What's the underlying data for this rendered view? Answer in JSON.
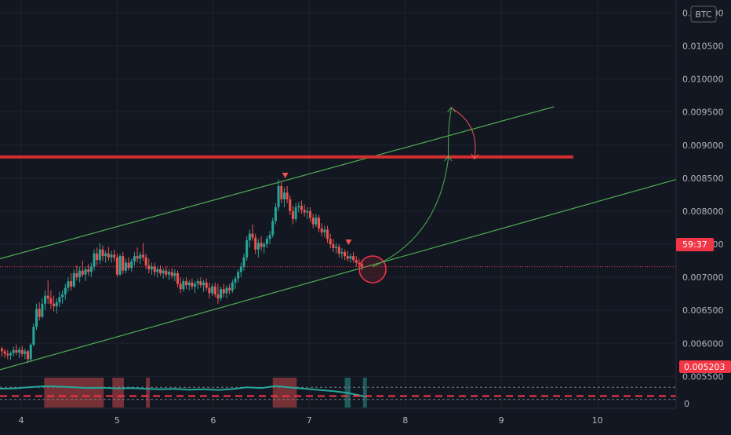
{
  "symbol": {
    "currency": "BTC"
  },
  "price_axis": {
    "ticks": [
      "0.011000",
      "0.010500",
      "0.010000",
      "0.009500",
      "0.009000",
      "0.008500",
      "0.008000",
      "0.007500",
      "0.007000",
      "0.006500",
      "0.006000",
      "0.005500"
    ],
    "countdown_label": "59:37",
    "stop_label": "0.005203"
  },
  "indicator_axis": {
    "zero_label": "0"
  },
  "time_axis": {
    "ticks": [
      "4",
      "5",
      "6",
      "7",
      "8",
      "9",
      "10"
    ]
  },
  "colors": {
    "background": "#131722",
    "up": "#26a69a",
    "down": "#ef5350",
    "channel": "#4caf50",
    "resistance": "#d32f2f",
    "label_red": "#f23645"
  },
  "chart_data": {
    "type": "candlestick",
    "y_range": [
      0.0051,
      0.0111
    ],
    "x_range": [
      3.78,
      10.82
    ],
    "channel_upper": [
      [
        3.78,
        0.00728
      ],
      [
        9.55,
        0.00958
      ]
    ],
    "channel_lower": [
      [
        3.78,
        0.0056
      ],
      [
        10.82,
        0.00848
      ]
    ],
    "resistance_level": 0.00882,
    "stop_level": 0.005203,
    "current_price": 0.00716,
    "candles": [
      [
        3.8,
        0.00592,
        0.00595,
        0.0058,
        0.00588
      ],
      [
        3.83,
        0.00588,
        0.00592,
        0.00578,
        0.00584
      ],
      [
        3.86,
        0.00584,
        0.0059,
        0.00576,
        0.00582
      ],
      [
        3.89,
        0.00582,
        0.00588,
        0.00575,
        0.00585
      ],
      [
        3.92,
        0.00585,
        0.00595,
        0.0058,
        0.0059
      ],
      [
        3.95,
        0.0059,
        0.00598,
        0.00582,
        0.00586
      ],
      [
        3.98,
        0.00586,
        0.00594,
        0.00578,
        0.0059
      ],
      [
        4.01,
        0.0059,
        0.00596,
        0.0058,
        0.00584
      ],
      [
        4.04,
        0.00584,
        0.00592,
        0.00576,
        0.00588
      ],
      [
        4.07,
        0.00588,
        0.0059,
        0.0057,
        0.00576
      ],
      [
        4.1,
        0.00576,
        0.006,
        0.00572,
        0.00598
      ],
      [
        4.13,
        0.00598,
        0.0063,
        0.00595,
        0.00625
      ],
      [
        4.16,
        0.00625,
        0.0066,
        0.0062,
        0.00652
      ],
      [
        4.19,
        0.00652,
        0.00662,
        0.00635,
        0.0064
      ],
      [
        4.22,
        0.0064,
        0.00668,
        0.00638,
        0.0066
      ],
      [
        4.25,
        0.0066,
        0.0068,
        0.0065,
        0.00672
      ],
      [
        4.28,
        0.00672,
        0.00695,
        0.0066,
        0.00668
      ],
      [
        4.31,
        0.00668,
        0.0068,
        0.00652,
        0.0066
      ],
      [
        4.34,
        0.0066,
        0.00672,
        0.00648,
        0.00656
      ],
      [
        4.37,
        0.00656,
        0.00668,
        0.00645,
        0.00662
      ],
      [
        4.4,
        0.00662,
        0.00678,
        0.00655,
        0.0067
      ],
      [
        4.43,
        0.0067,
        0.0068,
        0.0066,
        0.00674
      ],
      [
        4.46,
        0.00674,
        0.0069,
        0.00666,
        0.00684
      ],
      [
        4.49,
        0.00684,
        0.007,
        0.00678,
        0.00694
      ],
      [
        4.52,
        0.00694,
        0.00706,
        0.0068,
        0.00686
      ],
      [
        4.55,
        0.00686,
        0.00712,
        0.00684,
        0.00706
      ],
      [
        4.58,
        0.00706,
        0.00718,
        0.00695,
        0.007
      ],
      [
        4.61,
        0.007,
        0.00716,
        0.00692,
        0.0071
      ],
      [
        4.64,
        0.0071,
        0.00725,
        0.007,
        0.00704
      ],
      [
        4.67,
        0.00704,
        0.00716,
        0.00694,
        0.00712
      ],
      [
        4.7,
        0.00712,
        0.0072,
        0.00702,
        0.00708
      ],
      [
        4.73,
        0.00708,
        0.00722,
        0.007,
        0.00716
      ],
      [
        4.76,
        0.00716,
        0.00742,
        0.0071,
        0.00736
      ],
      [
        4.79,
        0.00736,
        0.00745,
        0.00718,
        0.00726
      ],
      [
        4.82,
        0.00726,
        0.00752,
        0.0072,
        0.00742
      ],
      [
        4.85,
        0.00742,
        0.00748,
        0.00725,
        0.00732
      ],
      [
        4.88,
        0.00732,
        0.0074,
        0.00722,
        0.00736
      ],
      [
        4.91,
        0.00736,
        0.00746,
        0.00725,
        0.0073
      ],
      [
        4.94,
        0.0073,
        0.0074,
        0.00722,
        0.00734
      ],
      [
        4.97,
        0.00734,
        0.00742,
        0.00724,
        0.0073
      ],
      [
        5.0,
        0.0073,
        0.00736,
        0.007,
        0.00704
      ],
      [
        5.03,
        0.00704,
        0.00735,
        0.00702,
        0.00732
      ],
      [
        5.06,
        0.00732,
        0.00738,
        0.00705,
        0.0071
      ],
      [
        5.09,
        0.0071,
        0.00728,
        0.00706,
        0.00722
      ],
      [
        5.12,
        0.00722,
        0.0073,
        0.0071,
        0.00714
      ],
      [
        5.15,
        0.00714,
        0.00728,
        0.00708,
        0.00724
      ],
      [
        5.18,
        0.00724,
        0.00738,
        0.00718,
        0.00732
      ],
      [
        5.21,
        0.00732,
        0.00745,
        0.00722,
        0.00728
      ],
      [
        5.24,
        0.00728,
        0.00738,
        0.0072,
        0.00734
      ],
      [
        5.27,
        0.00734,
        0.00752,
        0.00725,
        0.0073
      ],
      [
        5.3,
        0.0073,
        0.00736,
        0.00712,
        0.00718
      ],
      [
        5.33,
        0.00718,
        0.00728,
        0.00706,
        0.00712
      ],
      [
        5.36,
        0.00712,
        0.00722,
        0.00704,
        0.00716
      ],
      [
        5.39,
        0.00716,
        0.00722,
        0.00702,
        0.00708
      ],
      [
        5.42,
        0.00708,
        0.00716,
        0.007,
        0.00712
      ],
      [
        5.45,
        0.00712,
        0.00718,
        0.00702,
        0.00706
      ],
      [
        5.48,
        0.00706,
        0.00714,
        0.00698,
        0.0071
      ],
      [
        5.51,
        0.0071,
        0.00716,
        0.007,
        0.00704
      ],
      [
        5.54,
        0.00704,
        0.00712,
        0.00696,
        0.00708
      ],
      [
        5.57,
        0.00708,
        0.00714,
        0.00698,
        0.00702
      ],
      [
        5.6,
        0.00702,
        0.00712,
        0.00694,
        0.00706
      ],
      [
        5.63,
        0.00706,
        0.0071,
        0.00685,
        0.0069
      ],
      [
        5.66,
        0.0069,
        0.007,
        0.00676,
        0.00682
      ],
      [
        5.69,
        0.00682,
        0.00698,
        0.00678,
        0.00694
      ],
      [
        5.72,
        0.00694,
        0.007,
        0.00682,
        0.00688
      ],
      [
        5.75,
        0.00688,
        0.00696,
        0.0068,
        0.00692
      ],
      [
        5.78,
        0.00692,
        0.00698,
        0.00682,
        0.00686
      ],
      [
        5.81,
        0.00686,
        0.00694,
        0.00676,
        0.0069
      ],
      [
        5.84,
        0.0069,
        0.00698,
        0.00682,
        0.00694
      ],
      [
        5.87,
        0.00694,
        0.007,
        0.00684,
        0.00688
      ],
      [
        5.9,
        0.00688,
        0.00696,
        0.00678,
        0.00692
      ],
      [
        5.93,
        0.00692,
        0.00698,
        0.0068,
        0.00684
      ],
      [
        5.96,
        0.00684,
        0.00692,
        0.00668,
        0.00676
      ],
      [
        5.99,
        0.00676,
        0.0069,
        0.00672,
        0.00686
      ],
      [
        6.02,
        0.00686,
        0.00692,
        0.0067,
        0.00674
      ],
      [
        6.05,
        0.00674,
        0.0069,
        0.0066,
        0.00668
      ],
      [
        6.08,
        0.00668,
        0.00686,
        0.00664,
        0.00682
      ],
      [
        6.11,
        0.00682,
        0.0069,
        0.0067,
        0.00676
      ],
      [
        6.14,
        0.00676,
        0.00688,
        0.00668,
        0.00684
      ],
      [
        6.17,
        0.00684,
        0.0069,
        0.00674,
        0.0068
      ],
      [
        6.2,
        0.0068,
        0.00696,
        0.00676,
        0.00692
      ],
      [
        6.23,
        0.00692,
        0.00702,
        0.00682,
        0.00698
      ],
      [
        6.26,
        0.00698,
        0.00712,
        0.00692,
        0.00708
      ],
      [
        6.29,
        0.00708,
        0.00722,
        0.007,
        0.00716
      ],
      [
        6.32,
        0.00716,
        0.00736,
        0.0071,
        0.0073
      ],
      [
        6.35,
        0.0073,
        0.00762,
        0.00725,
        0.00756
      ],
      [
        6.38,
        0.00756,
        0.00772,
        0.00745,
        0.00766
      ],
      [
        6.41,
        0.00766,
        0.0078,
        0.00755,
        0.0076
      ],
      [
        6.44,
        0.0076,
        0.00766,
        0.00735,
        0.00742
      ],
      [
        6.47,
        0.00742,
        0.00758,
        0.0073,
        0.00752
      ],
      [
        6.5,
        0.00752,
        0.00762,
        0.0074,
        0.00746
      ],
      [
        6.53,
        0.00746,
        0.00754,
        0.00736,
        0.0075
      ],
      [
        6.56,
        0.0075,
        0.00762,
        0.00744,
        0.00758
      ],
      [
        6.59,
        0.00758,
        0.0077,
        0.0075,
        0.00764
      ],
      [
        6.62,
        0.00764,
        0.0079,
        0.0076,
        0.00785
      ],
      [
        6.65,
        0.00785,
        0.00812,
        0.0078,
        0.00806
      ],
      [
        6.68,
        0.00806,
        0.00848,
        0.008,
        0.00838
      ],
      [
        6.71,
        0.00838,
        0.00845,
        0.00812,
        0.00818
      ],
      [
        6.74,
        0.00818,
        0.00836,
        0.00806,
        0.00828
      ],
      [
        6.77,
        0.00828,
        0.00838,
        0.00812,
        0.00818
      ],
      [
        6.8,
        0.00818,
        0.00824,
        0.00794,
        0.008
      ],
      [
        6.83,
        0.008,
        0.00808,
        0.0078,
        0.00788
      ],
      [
        6.86,
        0.00788,
        0.00812,
        0.00784,
        0.00806
      ],
      [
        6.89,
        0.00806,
        0.00814,
        0.00798,
        0.00808
      ],
      [
        6.92,
        0.00808,
        0.00816,
        0.00796,
        0.00802
      ],
      [
        6.95,
        0.00802,
        0.0081,
        0.00792,
        0.00798
      ],
      [
        6.98,
        0.00798,
        0.00806,
        0.00788,
        0.008
      ],
      [
        7.01,
        0.008,
        0.00806,
        0.00784,
        0.0079
      ],
      [
        7.04,
        0.0079,
        0.00796,
        0.00774,
        0.0078
      ],
      [
        7.07,
        0.0078,
        0.00796,
        0.00776,
        0.0079
      ],
      [
        7.1,
        0.0079,
        0.00794,
        0.00768,
        0.00774
      ],
      [
        7.13,
        0.00774,
        0.00782,
        0.00762,
        0.00768
      ],
      [
        7.16,
        0.00768,
        0.00778,
        0.0076,
        0.00772
      ],
      [
        7.19,
        0.00772,
        0.00778,
        0.00752,
        0.00758
      ],
      [
        7.22,
        0.00758,
        0.00766,
        0.00744,
        0.0075
      ],
      [
        7.25,
        0.0075,
        0.00758,
        0.00738,
        0.00744
      ],
      [
        7.28,
        0.00744,
        0.00752,
        0.00736,
        0.00746
      ],
      [
        7.31,
        0.00746,
        0.0075,
        0.0073,
        0.00736
      ],
      [
        7.34,
        0.00736,
        0.00744,
        0.00728,
        0.00738
      ],
      [
        7.37,
        0.00738,
        0.00742,
        0.00726,
        0.00732
      ],
      [
        7.4,
        0.00732,
        0.0074,
        0.00724,
        0.00728
      ],
      [
        7.43,
        0.00728,
        0.00736,
        0.00722,
        0.00732
      ],
      [
        7.46,
        0.00732,
        0.00738,
        0.00722,
        0.00726
      ],
      [
        7.49,
        0.00726,
        0.00732,
        0.00716,
        0.00722
      ],
      [
        7.52,
        0.00722,
        0.00728,
        0.00712,
        0.0072
      ],
      [
        7.55,
        0.0072,
        0.00726,
        0.0071,
        0.00716
      ]
    ],
    "down_markers": [
      [
        6.75,
        0.00851
      ],
      [
        7.41,
        0.0075
      ]
    ],
    "oscillator_red_zones": [
      [
        4.24,
        4.86
      ],
      [
        4.95,
        5.07
      ],
      [
        5.3,
        5.34
      ],
      [
        6.62,
        6.87
      ]
    ],
    "oscillator_green_zones": [
      [
        7.37,
        7.43
      ],
      [
        7.56,
        7.6
      ]
    ],
    "oscillator_line": [
      [
        3.78,
        0.45
      ],
      [
        3.95,
        0.5
      ],
      [
        4.1,
        0.62
      ],
      [
        4.25,
        0.7
      ],
      [
        4.4,
        0.66
      ],
      [
        4.55,
        0.6
      ],
      [
        4.7,
        0.52
      ],
      [
        4.85,
        0.55
      ],
      [
        5.0,
        0.48
      ],
      [
        5.15,
        0.52
      ],
      [
        5.3,
        0.45
      ],
      [
        5.45,
        0.4
      ],
      [
        5.6,
        0.44
      ],
      [
        5.75,
        0.36
      ],
      [
        5.9,
        0.4
      ],
      [
        6.05,
        0.34
      ],
      [
        6.2,
        0.42
      ],
      [
        6.35,
        0.6
      ],
      [
        6.5,
        0.52
      ],
      [
        6.65,
        0.72
      ],
      [
        6.8,
        0.58
      ],
      [
        6.95,
        0.46
      ],
      [
        7.1,
        0.34
      ],
      [
        7.25,
        0.22
      ],
      [
        7.4,
        0.05
      ],
      [
        7.55,
        -0.25
      ],
      [
        7.6,
        -0.35
      ]
    ]
  }
}
